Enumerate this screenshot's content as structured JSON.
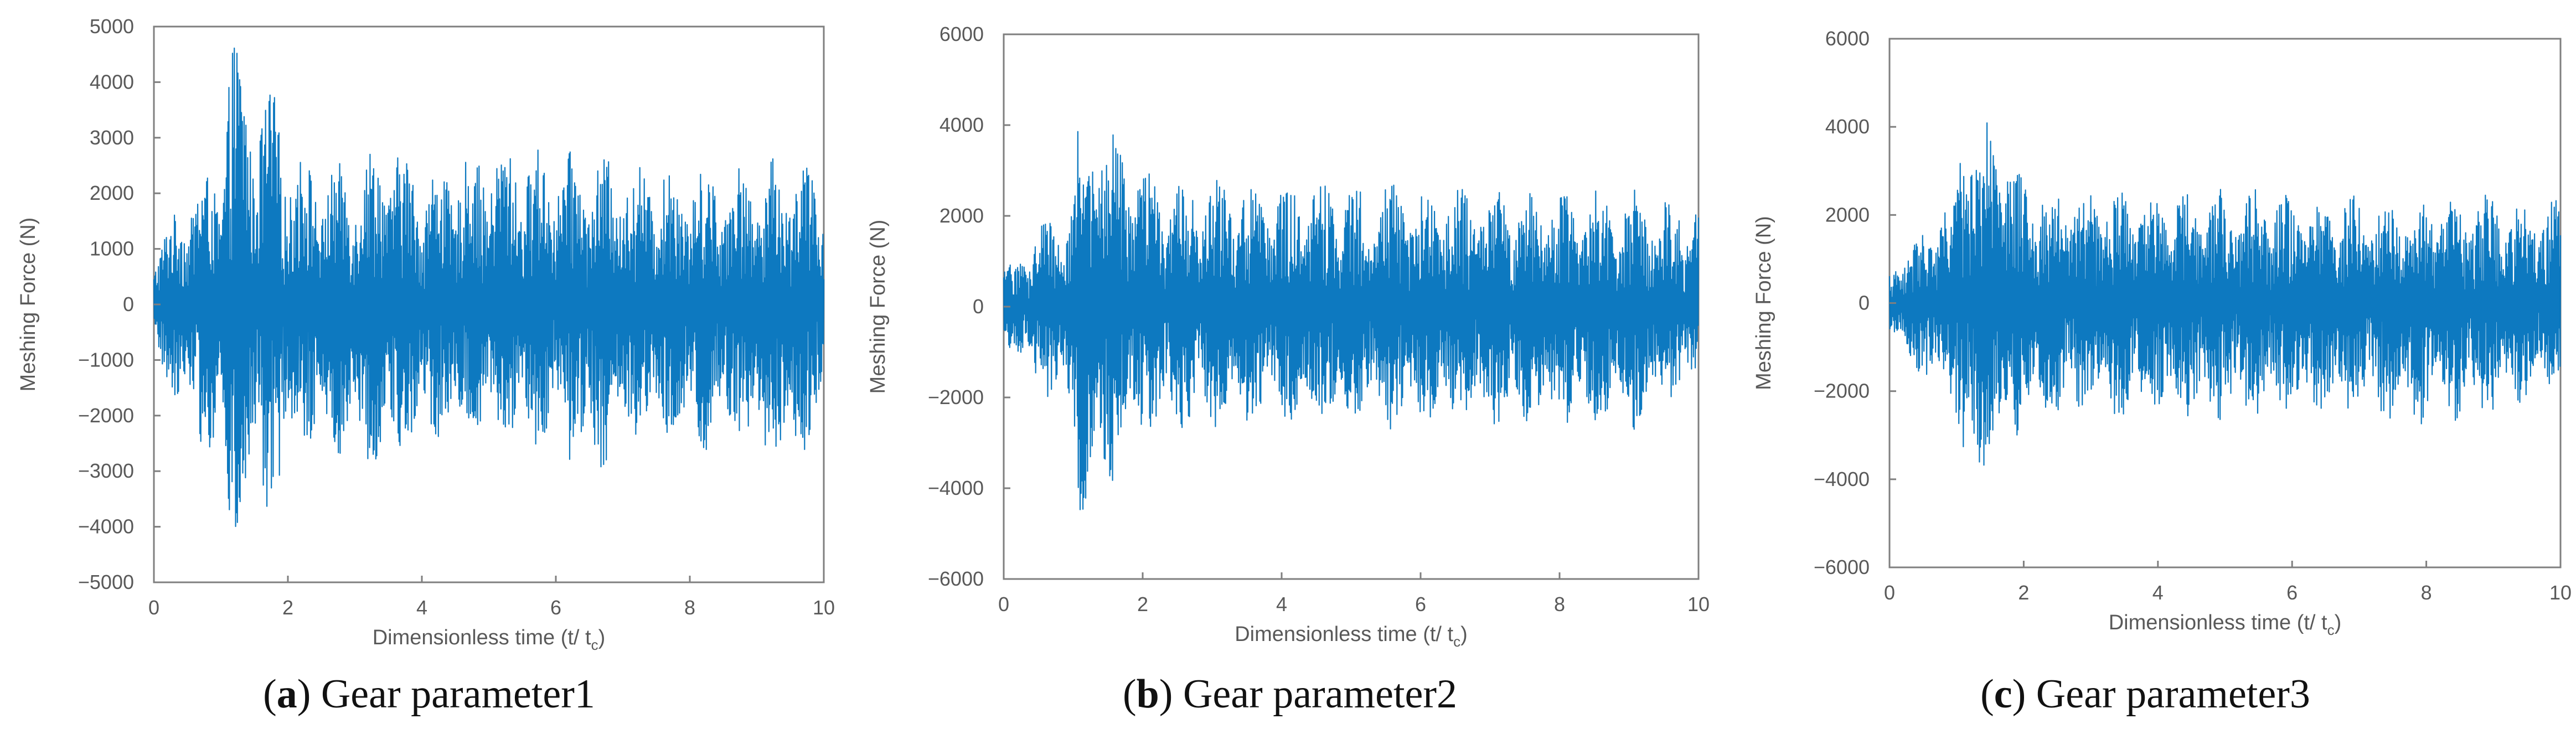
{
  "colors": {
    "series": "#0072BD",
    "axis": "#7f7f7f",
    "text": "#595959",
    "caption": "#111111"
  },
  "chart_data": [
    {
      "type": "line",
      "panel_letter": "a",
      "caption": "Gear parameter1",
      "xlabel_main": "Dimensionless time (t/ t",
      "xlabel_sub": "c",
      "xlabel_close": ")",
      "ylabel": "Meshing Force  (N)",
      "xlim": [
        0,
        10
      ],
      "ylim": [
        -5000,
        5000
      ],
      "xticks": [
        0,
        2,
        4,
        6,
        8,
        10
      ],
      "yticks": [
        -5000,
        -4000,
        -3000,
        -2000,
        -1000,
        0,
        1000,
        2000,
        3000,
        4000,
        5000
      ],
      "ytick_labels": [
        "−5000",
        "−4000",
        "−3000",
        "−2000",
        "−1000",
        "0",
        "1000",
        "2000",
        "3000",
        "4000",
        "5000"
      ],
      "grid": false,
      "series": [
        {
          "x": [
            0,
            0.5,
            1.0,
            1.15,
            1.3,
            1.5,
            1.8,
            2.0,
            2.5,
            3.0,
            3.5,
            4.0,
            5.0,
            6.0,
            6.5,
            7.0,
            8.0,
            9.0,
            9.5,
            10.0
          ],
          "upper": [
            1000,
            2100,
            2600,
            5000,
            4600,
            3800,
            3900,
            2900,
            2500,
            2600,
            3100,
            2400,
            2900,
            2800,
            2700,
            2600,
            2500,
            2500,
            2800,
            2300
          ],
          "lower": [
            -1000,
            -2100,
            -3200,
            -4600,
            -4200,
            -3800,
            -4000,
            -2900,
            -2600,
            -2800,
            -3000,
            -2500,
            -2500,
            -2600,
            -3200,
            -2700,
            -2700,
            -2700,
            -3100,
            -2200
          ]
        }
      ]
    },
    {
      "type": "line",
      "panel_letter": "b",
      "caption": "Gear parameter2",
      "xlabel_main": "Dimensionless time (t/ t",
      "xlabel_sub": "c",
      "xlabel_close": ")",
      "ylabel": "Meshing Force  (N)",
      "xlim": [
        0,
        10
      ],
      "ylim": [
        -6000,
        6000
      ],
      "xticks": [
        0,
        2,
        4,
        6,
        8,
        10
      ],
      "yticks": [
        -6000,
        -4000,
        -2000,
        0,
        2000,
        4000,
        6000
      ],
      "ytick_labels": [
        "−6000",
        "−4000",
        "−2000",
        "0",
        "2000",
        "4000",
        "6000"
      ],
      "grid": false,
      "series": [
        {
          "x": [
            0,
            0.5,
            1.0,
            1.1,
            1.3,
            1.6,
            2.0,
            2.5,
            3.0,
            4.0,
            5.0,
            6.0,
            7.0,
            8.0,
            9.0,
            10.0
          ],
          "upper": [
            800,
            1800,
            2500,
            4600,
            4300,
            4100,
            3000,
            2800,
            2800,
            2700,
            2800,
            2700,
            2600,
            2600,
            2600,
            2300
          ],
          "lower": [
            -800,
            -1800,
            -2600,
            -4800,
            -4200,
            -3900,
            -3000,
            -2700,
            -2700,
            -2700,
            -2700,
            -2700,
            -2700,
            -2800,
            -2800,
            -1800
          ]
        }
      ]
    },
    {
      "type": "line",
      "panel_letter": "c",
      "caption": "Gear parameter3",
      "xlabel_main": "Dimensionless time (t/ t",
      "xlabel_sub": "c",
      "xlabel_close": ")",
      "ylabel": "Meshing Force  (N)",
      "xlim": [
        0,
        10
      ],
      "ylim": [
        -6000,
        6000
      ],
      "xticks": [
        0,
        2,
        4,
        6,
        8,
        10
      ],
      "yticks": [
        -6000,
        -4000,
        -2000,
        0,
        2000,
        4000,
        6000
      ],
      "ytick_labels": [
        "−6000",
        "−4000",
        "−2000",
        "0",
        "2000",
        "4000",
        "6000"
      ],
      "grid": false,
      "series": [
        {
          "x": [
            0,
            0.5,
            1.0,
            1.1,
            1.3,
            1.6,
            2.0,
            2.5,
            3.0,
            4.0,
            5.0,
            6.0,
            7.0,
            8.0,
            9.0,
            10.0
          ],
          "upper": [
            700,
            1800,
            2500,
            5000,
            4200,
            4100,
            2900,
            2600,
            2600,
            2500,
            2700,
            2500,
            2500,
            2500,
            2500,
            2400
          ],
          "lower": [
            -700,
            -1800,
            -2600,
            -4400,
            -4000,
            -3800,
            -2800,
            -2600,
            -2600,
            -2700,
            -2700,
            -2600,
            -2600,
            -2800,
            -2600,
            -1800
          ]
        }
      ]
    }
  ]
}
